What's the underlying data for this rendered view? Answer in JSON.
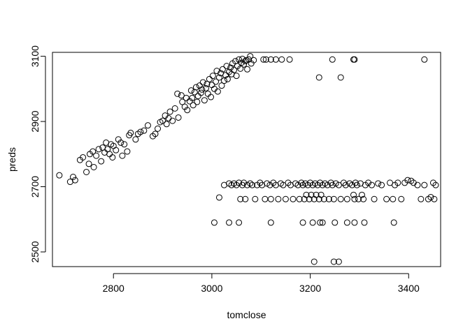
{
  "chart_data": {
    "type": "scatter",
    "xlabel": "tomclose",
    "ylabel": "preds",
    "xlim": [
      2676,
      3465
    ],
    "ylim": [
      2455,
      3112
    ],
    "xticks": [
      2800,
      3000,
      3200,
      3400
    ],
    "yticks": [
      2500,
      2700,
      2900,
      3100
    ],
    "grid": false,
    "marker": "open-circle",
    "marker_color": "#000000",
    "points_description": "approximate reading of the scatter points (x=tomclose, y=preds)",
    "points": [
      [
        2690,
        2735
      ],
      [
        2712,
        2715
      ],
      [
        2718,
        2730
      ],
      [
        2722,
        2720
      ],
      [
        2732,
        2782
      ],
      [
        2738,
        2790
      ],
      [
        2745,
        2745
      ],
      [
        2750,
        2770
      ],
      [
        2752,
        2800
      ],
      [
        2758,
        2808
      ],
      [
        2760,
        2760
      ],
      [
        2765,
        2795
      ],
      [
        2770,
        2815
      ],
      [
        2775,
        2778
      ],
      [
        2778,
        2820
      ],
      [
        2782,
        2805
      ],
      [
        2785,
        2835
      ],
      [
        2788,
        2815
      ],
      [
        2792,
        2800
      ],
      [
        2795,
        2830
      ],
      [
        2798,
        2790
      ],
      [
        2800,
        2825
      ],
      [
        2805,
        2812
      ],
      [
        2810,
        2845
      ],
      [
        2815,
        2835
      ],
      [
        2818,
        2795
      ],
      [
        2822,
        2830
      ],
      [
        2828,
        2808
      ],
      [
        2832,
        2858
      ],
      [
        2835,
        2865
      ],
      [
        2845,
        2845
      ],
      [
        2850,
        2862
      ],
      [
        2855,
        2868
      ],
      [
        2862,
        2872
      ],
      [
        2870,
        2888
      ],
      [
        2880,
        2855
      ],
      [
        2885,
        2862
      ],
      [
        2890,
        2878
      ],
      [
        2895,
        2898
      ],
      [
        2900,
        2902
      ],
      [
        2905,
        2918
      ],
      [
        2908,
        2892
      ],
      [
        2912,
        2910
      ],
      [
        2915,
        2930
      ],
      [
        2920,
        2902
      ],
      [
        2925,
        2940
      ],
      [
        2930,
        2985
      ],
      [
        2932,
        2912
      ],
      [
        2938,
        2980
      ],
      [
        2940,
        2960
      ],
      [
        2945,
        2945
      ],
      [
        2948,
        2972
      ],
      [
        2950,
        2935
      ],
      [
        2955,
        2962
      ],
      [
        2958,
        2995
      ],
      [
        2960,
        2972
      ],
      [
        2962,
        2950
      ],
      [
        2965,
        2990
      ],
      [
        2968,
        3005
      ],
      [
        2970,
        2960
      ],
      [
        2972,
        2978
      ],
      [
        2975,
        3010
      ],
      [
        2978,
        2988
      ],
      [
        2980,
        2998
      ],
      [
        2982,
        3020
      ],
      [
        2985,
        2965
      ],
      [
        2988,
        3002
      ],
      [
        2990,
        3015
      ],
      [
        2992,
        2985
      ],
      [
        2995,
        3030
      ],
      [
        2998,
        2975
      ],
      [
        3000,
        3012
      ],
      [
        3002,
        3040
      ],
      [
        3005,
        3000
      ],
      [
        3008,
        3022
      ],
      [
        3010,
        3055
      ],
      [
        3012,
        2992
      ],
      [
        3015,
        3035
      ],
      [
        3018,
        3048
      ],
      [
        3020,
        3010
      ],
      [
        3022,
        3060
      ],
      [
        3025,
        3025
      ],
      [
        3028,
        3042
      ],
      [
        3030,
        3070
      ],
      [
        3032,
        3030
      ],
      [
        3035,
        3052
      ],
      [
        3038,
        3065
      ],
      [
        3040,
        3045
      ],
      [
        3042,
        3078
      ],
      [
        3045,
        3058
      ],
      [
        3048,
        3085
      ],
      [
        3050,
        3040
      ],
      [
        3052,
        3070
      ],
      [
        3055,
        3090
      ],
      [
        3058,
        3062
      ],
      [
        3060,
        3080
      ],
      [
        3062,
        3092
      ],
      [
        3065,
        3075
      ],
      [
        3068,
        3085
      ],
      [
        3070,
        3088
      ],
      [
        3072,
        3060
      ],
      [
        3075,
        3090
      ],
      [
        3078,
        3100
      ],
      [
        3080,
        3078
      ],
      [
        3085,
        3088
      ],
      [
        3105,
        3090
      ],
      [
        3110,
        3090
      ],
      [
        3120,
        3090
      ],
      [
        3130,
        3090
      ],
      [
        3142,
        3090
      ],
      [
        3158,
        3090
      ],
      [
        3218,
        3035
      ],
      [
        3245,
        3090
      ],
      [
        3262,
        3035
      ],
      [
        3288,
        3090
      ],
      [
        3290,
        3090
      ],
      [
        3432,
        3090
      ],
      [
        3005,
        2590
      ],
      [
        3035,
        2590
      ],
      [
        3055,
        2590
      ],
      [
        3120,
        2590
      ],
      [
        3185,
        2590
      ],
      [
        3205,
        2590
      ],
      [
        3220,
        2590
      ],
      [
        3225,
        2590
      ],
      [
        3250,
        2590
      ],
      [
        3275,
        2590
      ],
      [
        3290,
        2590
      ],
      [
        3310,
        2590
      ],
      [
        3370,
        2590
      ],
      [
        3208,
        2470
      ],
      [
        3248,
        2470
      ],
      [
        3258,
        2470
      ],
      [
        3015,
        2667
      ],
      [
        3025,
        2705
      ],
      [
        3035,
        2710
      ],
      [
        3040,
        2705
      ],
      [
        3045,
        2710
      ],
      [
        3050,
        2705
      ],
      [
        3055,
        2712
      ],
      [
        3058,
        2662
      ],
      [
        3062,
        2705
      ],
      [
        3065,
        2712
      ],
      [
        3068,
        2662
      ],
      [
        3072,
        2705
      ],
      [
        3078,
        2710
      ],
      [
        3082,
        2705
      ],
      [
        3088,
        2662
      ],
      [
        3092,
        2705
      ],
      [
        3098,
        2712
      ],
      [
        3102,
        2705
      ],
      [
        3108,
        2662
      ],
      [
        3112,
        2710
      ],
      [
        3118,
        2705
      ],
      [
        3120,
        2662
      ],
      [
        3125,
        2712
      ],
      [
        3130,
        2705
      ],
      [
        3135,
        2662
      ],
      [
        3140,
        2710
      ],
      [
        3145,
        2705
      ],
      [
        3150,
        2662
      ],
      [
        3155,
        2712
      ],
      [
        3160,
        2705
      ],
      [
        3165,
        2662
      ],
      [
        3170,
        2710
      ],
      [
        3175,
        2705
      ],
      [
        3178,
        2662
      ],
      [
        3182,
        2712
      ],
      [
        3185,
        2705
      ],
      [
        3188,
        2662
      ],
      [
        3190,
        2710
      ],
      [
        3192,
        2675
      ],
      [
        3195,
        2705
      ],
      [
        3198,
        2662
      ],
      [
        3200,
        2712
      ],
      [
        3202,
        2675
      ],
      [
        3205,
        2705
      ],
      [
        3208,
        2662
      ],
      [
        3210,
        2710
      ],
      [
        3212,
        2675
      ],
      [
        3215,
        2705
      ],
      [
        3218,
        2662
      ],
      [
        3220,
        2712
      ],
      [
        3222,
        2675
      ],
      [
        3225,
        2705
      ],
      [
        3228,
        2662
      ],
      [
        3230,
        2710
      ],
      [
        3235,
        2705
      ],
      [
        3238,
        2662
      ],
      [
        3242,
        2712
      ],
      [
        3245,
        2705
      ],
      [
        3248,
        2662
      ],
      [
        3252,
        2710
      ],
      [
        3258,
        2705
      ],
      [
        3262,
        2662
      ],
      [
        3268,
        2712
      ],
      [
        3272,
        2705
      ],
      [
        3275,
        2662
      ],
      [
        3280,
        2710
      ],
      [
        3285,
        2705
      ],
      [
        3288,
        2675
      ],
      [
        3290,
        2662
      ],
      [
        3292,
        2712
      ],
      [
        3295,
        2705
      ],
      [
        3298,
        2662
      ],
      [
        3302,
        2710
      ],
      [
        3305,
        2675
      ],
      [
        3308,
        2662
      ],
      [
        3312,
        2705
      ],
      [
        3318,
        2712
      ],
      [
        3325,
        2705
      ],
      [
        3330,
        2662
      ],
      [
        3338,
        2710
      ],
      [
        3345,
        2705
      ],
      [
        3355,
        2662
      ],
      [
        3362,
        2712
      ],
      [
        3368,
        2662
      ],
      [
        3372,
        2705
      ],
      [
        3378,
        2712
      ],
      [
        3385,
        2662
      ],
      [
        3392,
        2712
      ],
      [
        3398,
        2720
      ],
      [
        3405,
        2718
      ],
      [
        3410,
        2712
      ],
      [
        3418,
        2705
      ],
      [
        3425,
        2662
      ],
      [
        3432,
        2705
      ],
      [
        3440,
        2662
      ],
      [
        3445,
        2668
      ],
      [
        3450,
        2712
      ],
      [
        3452,
        2662
      ],
      [
        3455,
        2705
      ]
    ]
  }
}
